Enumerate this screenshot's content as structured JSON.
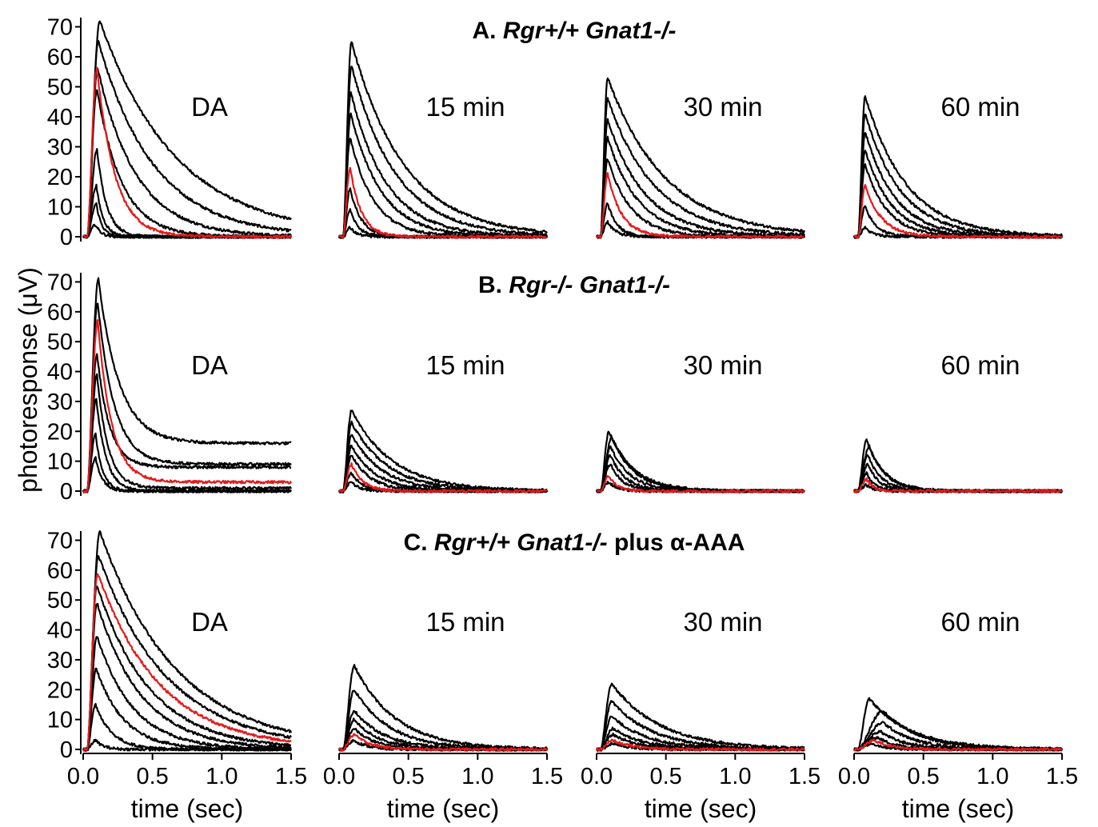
{
  "figure": {
    "ylabel": "photoresponse (μV)",
    "xlabel": "time (sec)",
    "colors": {
      "trace": "#000000",
      "highlight": "#e31a1c"
    }
  },
  "rows": [
    {
      "key": "A",
      "title": {
        "prefix": "A. ",
        "italic": "Rgr+/+ Gnat1-/-",
        "suffix": ""
      },
      "y_ticks": [
        "0",
        "10",
        "20",
        "30",
        "40",
        "50",
        "60",
        "70"
      ]
    },
    {
      "key": "B",
      "title": {
        "prefix": "B. ",
        "italic": "Rgr-/- Gnat1-/-",
        "suffix": ""
      },
      "y_ticks": [
        "0",
        "10",
        "20",
        "30",
        "40",
        "50",
        "60",
        "70"
      ]
    },
    {
      "key": "C",
      "title": {
        "prefix": "C. ",
        "italic": "Rgr+/+ Gnat1-/-",
        "suffix": " plus α-AAA"
      },
      "y_ticks": [
        "0",
        "10",
        "20",
        "30",
        "40",
        "50",
        "60",
        "70"
      ]
    }
  ],
  "x_ticks": [
    "0.0",
    "0.5",
    "1.0",
    "1.5"
  ],
  "chart_data": [
    {
      "type": "line",
      "row": "A",
      "label": "DA",
      "xlim": [
        0,
        1.5
      ],
      "ylim": [
        0,
        72
      ],
      "highlight_index": 4,
      "series": [
        {
          "peak": 72,
          "tpeak": 0.09,
          "tau": 0.55,
          "color": "black"
        },
        {
          "peak": 65,
          "tpeak": 0.08,
          "tau": 0.4,
          "color": "black"
        },
        {
          "peak": 56,
          "tpeak": 0.075,
          "tau": 0.28,
          "color": "black"
        },
        {
          "peak": 49,
          "tpeak": 0.07,
          "tau": 0.18,
          "color": "black"
        },
        {
          "peak": 56,
          "tpeak": 0.07,
          "tau": 0.13,
          "color": "red"
        },
        {
          "peak": 29,
          "tpeak": 0.07,
          "tau": 0.07,
          "color": "black"
        },
        {
          "peak": 17,
          "tpeak": 0.065,
          "tau": 0.05,
          "color": "black"
        },
        {
          "peak": 11,
          "tpeak": 0.065,
          "tau": 0.04,
          "color": "black"
        },
        {
          "peak": 4,
          "tpeak": 0.06,
          "tau": 0.04,
          "color": "black"
        }
      ]
    },
    {
      "type": "line",
      "row": "A",
      "label": "15 min",
      "xlim": [
        0,
        1.5
      ],
      "ylim": [
        0,
        72
      ],
      "series": [
        {
          "peak": 65,
          "tpeak": 0.06,
          "tau": 0.38,
          "color": "black"
        },
        {
          "peak": 57,
          "tpeak": 0.06,
          "tau": 0.32,
          "color": "black"
        },
        {
          "peak": 48,
          "tpeak": 0.055,
          "tau": 0.26,
          "color": "black"
        },
        {
          "peak": 41,
          "tpeak": 0.055,
          "tau": 0.22,
          "color": "black"
        },
        {
          "peak": 33,
          "tpeak": 0.05,
          "tau": 0.17,
          "color": "black"
        },
        {
          "peak": 23,
          "tpeak": 0.05,
          "tau": 0.08,
          "color": "red"
        },
        {
          "peak": 16,
          "tpeak": 0.05,
          "tau": 0.08,
          "color": "black"
        },
        {
          "peak": 9,
          "tpeak": 0.05,
          "tau": 0.06,
          "color": "black"
        },
        {
          "peak": 3,
          "tpeak": 0.05,
          "tau": 0.05,
          "color": "black"
        }
      ]
    },
    {
      "type": "line",
      "row": "A",
      "label": "30 min",
      "xlim": [
        0,
        1.5
      ],
      "ylim": [
        0,
        72
      ],
      "series": [
        {
          "peak": 53,
          "tpeak": 0.05,
          "tau": 0.42,
          "color": "black"
        },
        {
          "peak": 46,
          "tpeak": 0.05,
          "tau": 0.34,
          "color": "black"
        },
        {
          "peak": 39,
          "tpeak": 0.05,
          "tau": 0.27,
          "color": "black"
        },
        {
          "peak": 33,
          "tpeak": 0.05,
          "tau": 0.22,
          "color": "black"
        },
        {
          "peak": 26,
          "tpeak": 0.05,
          "tau": 0.17,
          "color": "black"
        },
        {
          "peak": 21,
          "tpeak": 0.05,
          "tau": 0.1,
          "color": "red"
        },
        {
          "peak": 11,
          "tpeak": 0.05,
          "tau": 0.07,
          "color": "black"
        },
        {
          "peak": 5,
          "tpeak": 0.05,
          "tau": 0.06,
          "color": "black"
        }
      ]
    },
    {
      "type": "line",
      "row": "A",
      "label": "60 min",
      "xlim": [
        0,
        1.5
      ],
      "ylim": [
        0,
        72
      ],
      "series": [
        {
          "peak": 47,
          "tpeak": 0.05,
          "tau": 0.3,
          "color": "black"
        },
        {
          "peak": 41,
          "tpeak": 0.05,
          "tau": 0.26,
          "color": "black"
        },
        {
          "peak": 35,
          "tpeak": 0.05,
          "tau": 0.22,
          "color": "black"
        },
        {
          "peak": 29,
          "tpeak": 0.05,
          "tau": 0.19,
          "color": "black"
        },
        {
          "peak": 24,
          "tpeak": 0.05,
          "tau": 0.16,
          "color": "black"
        },
        {
          "peak": 17,
          "tpeak": 0.05,
          "tau": 0.12,
          "color": "red"
        },
        {
          "peak": 10,
          "tpeak": 0.05,
          "tau": 0.08,
          "color": "black"
        },
        {
          "peak": 3,
          "tpeak": 0.05,
          "tau": 0.06,
          "color": "black"
        }
      ]
    },
    {
      "type": "line",
      "row": "B",
      "label": "DA",
      "xlim": [
        0,
        1.5
      ],
      "ylim": [
        0,
        72
      ],
      "highlight_index": 2,
      "series": [
        {
          "peak": 71,
          "tpeak": 0.08,
          "tau": 0.15,
          "plateau": 16,
          "color": "black"
        },
        {
          "peak": 63,
          "tpeak": 0.075,
          "tau": 0.12,
          "plateau": 9,
          "color": "black"
        },
        {
          "peak": 57,
          "tpeak": 0.075,
          "tau": 0.1,
          "plateau": 3,
          "color": "red"
        },
        {
          "peak": 46,
          "tpeak": 0.07,
          "tau": 0.09,
          "plateau": 8,
          "color": "black"
        },
        {
          "peak": 39,
          "tpeak": 0.07,
          "tau": 0.08,
          "plateau": 1,
          "color": "black"
        },
        {
          "peak": 31,
          "tpeak": 0.065,
          "tau": 0.07,
          "plateau": 0,
          "color": "black"
        },
        {
          "peak": 19,
          "tpeak": 0.06,
          "tau": 0.05,
          "plateau": 0,
          "color": "black"
        },
        {
          "peak": 11,
          "tpeak": 0.06,
          "tau": 0.05,
          "plateau": 0,
          "color": "black"
        }
      ]
    },
    {
      "type": "line",
      "row": "B",
      "label": "15 min",
      "xlim": [
        0,
        1.5
      ],
      "ylim": [
        0,
        72
      ],
      "series": [
        {
          "peak": 27,
          "tpeak": 0.06,
          "tau": 0.3,
          "color": "black"
        },
        {
          "peak": 23,
          "tpeak": 0.06,
          "tau": 0.26,
          "color": "black"
        },
        {
          "peak": 19,
          "tpeak": 0.06,
          "tau": 0.22,
          "color": "black"
        },
        {
          "peak": 15,
          "tpeak": 0.06,
          "tau": 0.18,
          "color": "black"
        },
        {
          "peak": 12,
          "tpeak": 0.06,
          "tau": 0.14,
          "color": "black"
        },
        {
          "peak": 9,
          "tpeak": 0.06,
          "tau": 0.08,
          "color": "red"
        },
        {
          "peak": 6,
          "tpeak": 0.06,
          "tau": 0.08,
          "color": "black"
        },
        {
          "peak": 3,
          "tpeak": 0.06,
          "tau": 0.06,
          "color": "black"
        }
      ]
    },
    {
      "type": "line",
      "row": "B",
      "label": "30 min",
      "xlim": [
        0,
        1.5
      ],
      "ylim": [
        0,
        72
      ],
      "series": [
        {
          "peak": 20,
          "tpeak": 0.06,
          "tau": 0.18,
          "color": "black"
        },
        {
          "peak": 18,
          "tpeak": 0.08,
          "tau": 0.16,
          "color": "black"
        },
        {
          "peak": 15,
          "tpeak": 0.07,
          "tau": 0.14,
          "color": "black"
        },
        {
          "peak": 12,
          "tpeak": 0.07,
          "tau": 0.11,
          "color": "black"
        },
        {
          "peak": 9,
          "tpeak": 0.07,
          "tau": 0.09,
          "color": "black"
        },
        {
          "peak": 5,
          "tpeak": 0.06,
          "tau": 0.06,
          "color": "red"
        },
        {
          "peak": 3,
          "tpeak": 0.06,
          "tau": 0.06,
          "color": "black"
        }
      ]
    },
    {
      "type": "line",
      "row": "B",
      "label": "60 min",
      "xlim": [
        0,
        1.5
      ],
      "ylim": [
        0,
        72
      ],
      "series": [
        {
          "peak": 17,
          "tpeak": 0.06,
          "tau": 0.13,
          "color": "black"
        },
        {
          "peak": 15,
          "tpeak": 0.08,
          "tau": 0.12,
          "color": "black"
        },
        {
          "peak": 12,
          "tpeak": 0.07,
          "tau": 0.1,
          "color": "black"
        },
        {
          "peak": 9,
          "tpeak": 0.07,
          "tau": 0.08,
          "color": "black"
        },
        {
          "peak": 6,
          "tpeak": 0.06,
          "tau": 0.06,
          "color": "black"
        },
        {
          "peak": 4,
          "tpeak": 0.06,
          "tau": 0.05,
          "color": "red"
        },
        {
          "peak": 2,
          "tpeak": 0.06,
          "tau": 0.05,
          "color": "black"
        }
      ]
    },
    {
      "type": "line",
      "row": "C",
      "label": "DA",
      "xlim": [
        0,
        1.5
      ],
      "ylim": [
        0,
        72
      ],
      "highlight_index": 2,
      "series": [
        {
          "peak": 73,
          "tpeak": 0.09,
          "tau": 0.55,
          "color": "black"
        },
        {
          "peak": 65,
          "tpeak": 0.08,
          "tau": 0.5,
          "color": "black"
        },
        {
          "peak": 59,
          "tpeak": 0.075,
          "tau": 0.45,
          "color": "red"
        },
        {
          "peak": 55,
          "tpeak": 0.07,
          "tau": 0.38,
          "color": "black"
        },
        {
          "peak": 49,
          "tpeak": 0.07,
          "tau": 0.32,
          "color": "black"
        },
        {
          "peak": 38,
          "tpeak": 0.07,
          "tau": 0.26,
          "color": "black"
        },
        {
          "peak": 27,
          "tpeak": 0.065,
          "tau": 0.2,
          "color": "black"
        },
        {
          "peak": 15,
          "tpeak": 0.06,
          "tau": 0.12,
          "color": "black"
        },
        {
          "peak": 3,
          "tpeak": 0.06,
          "tau": 0.06,
          "color": "black"
        }
      ]
    },
    {
      "type": "line",
      "row": "C",
      "label": "15 min",
      "xlim": [
        0,
        1.5
      ],
      "ylim": [
        0,
        72
      ],
      "series": [
        {
          "peak": 28,
          "tpeak": 0.08,
          "tau": 0.3,
          "color": "black"
        },
        {
          "peak": 20,
          "tpeak": 0.08,
          "tau": 0.26,
          "color": "black"
        },
        {
          "peak": 13,
          "tpeak": 0.08,
          "tau": 0.22,
          "color": "black"
        },
        {
          "peak": 10,
          "tpeak": 0.08,
          "tau": 0.18,
          "color": "black"
        },
        {
          "peak": 7,
          "tpeak": 0.08,
          "tau": 0.15,
          "color": "black"
        },
        {
          "peak": 5,
          "tpeak": 0.08,
          "tau": 0.12,
          "color": "red"
        },
        {
          "peak": 3,
          "tpeak": 0.08,
          "tau": 0.1,
          "color": "black"
        }
      ]
    },
    {
      "type": "line",
      "row": "C",
      "label": "30 min",
      "xlim": [
        0,
        1.5
      ],
      "ylim": [
        0,
        72
      ],
      "series": [
        {
          "peak": 22,
          "tpeak": 0.08,
          "tau": 0.35,
          "color": "black"
        },
        {
          "peak": 16,
          "tpeak": 0.08,
          "tau": 0.3,
          "color": "black"
        },
        {
          "peak": 11,
          "tpeak": 0.08,
          "tau": 0.26,
          "color": "black"
        },
        {
          "peak": 7,
          "tpeak": 0.09,
          "tau": 0.22,
          "color": "black"
        },
        {
          "peak": 5,
          "tpeak": 0.09,
          "tau": 0.18,
          "color": "black"
        },
        {
          "peak": 3,
          "tpeak": 0.09,
          "tau": 0.14,
          "color": "red"
        },
        {
          "peak": 2,
          "tpeak": 0.09,
          "tau": 0.12,
          "color": "black"
        }
      ]
    },
    {
      "type": "line",
      "row": "C",
      "label": "60 min",
      "xlim": [
        0,
        1.5
      ],
      "ylim": [
        0,
        72
      ],
      "series": [
        {
          "peak": 17,
          "tpeak": 0.08,
          "tau": 0.3,
          "color": "black"
        },
        {
          "peak": 13,
          "tpeak": 0.18,
          "tau": 0.26,
          "color": "black"
        },
        {
          "peak": 9,
          "tpeak": 0.18,
          "tau": 0.22,
          "color": "black"
        },
        {
          "peak": 6,
          "tpeak": 0.16,
          "tau": 0.18,
          "color": "black"
        },
        {
          "peak": 4,
          "tpeak": 0.14,
          "tau": 0.14,
          "color": "black"
        },
        {
          "peak": 3,
          "tpeak": 0.12,
          "tau": 0.12,
          "color": "red"
        },
        {
          "peak": 2,
          "tpeak": 0.1,
          "tau": 0.1,
          "color": "black"
        }
      ]
    }
  ]
}
